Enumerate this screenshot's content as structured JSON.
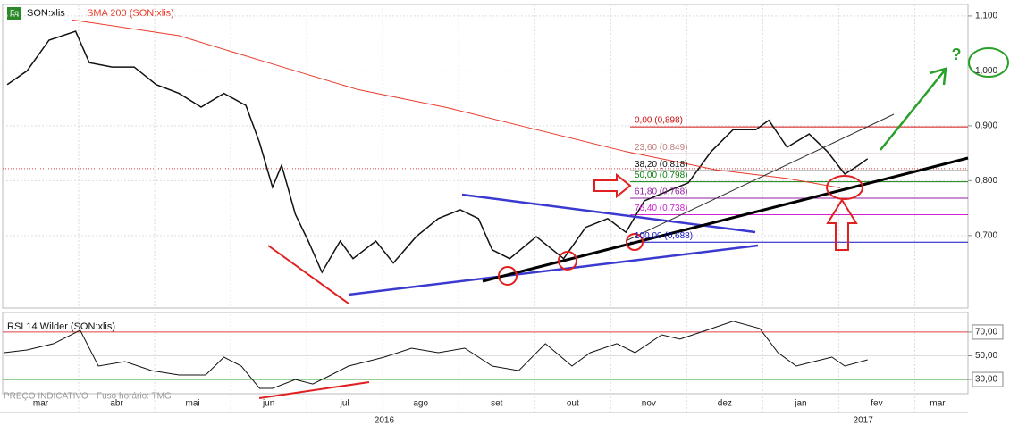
{
  "badge": "Eq",
  "chart_data": [
    {
      "type": "line",
      "xlim": [
        0,
        12.7
      ],
      "xgrid": [
        1,
        2,
        3,
        4,
        5,
        6,
        7,
        8,
        9,
        10,
        11,
        12
      ],
      "ylim": [
        0.568,
        1.121
      ],
      "yticks": [
        {
          "value": 0.7,
          "label": "0,700"
        },
        {
          "value": 0.8,
          "label": "0,800"
        },
        {
          "value": 0.9,
          "label": "0,900"
        },
        {
          "value": 1.0,
          "label": "1,000"
        },
        {
          "value": 1.1,
          "label": "1,100"
        }
      ],
      "grid": true,
      "last_price": 0.822,
      "series": [
        {
          "name": "SON:xlis",
          "color": "#111111",
          "x": [
            0.06,
            0.32,
            0.61,
            0.96,
            1.14,
            1.44,
            1.73,
            2.02,
            2.32,
            2.61,
            2.91,
            3.2,
            3.38,
            3.55,
            3.67,
            3.85,
            4.02,
            4.2,
            4.44,
            4.61,
            4.91,
            5.14,
            5.44,
            5.73,
            6.02,
            6.26,
            6.44,
            6.67,
            7.02,
            7.38,
            7.67,
            7.96,
            8.2,
            8.44,
            8.73,
            9.02,
            9.32,
            9.61,
            9.91,
            10.08,
            10.32,
            10.61,
            10.85,
            11.08,
            11.26,
            11.38
          ],
          "values": [
            0.975,
            1.0,
            1.056,
            1.072,
            1.015,
            1.007,
            1.007,
            0.975,
            0.959,
            0.934,
            0.959,
            0.937,
            0.869,
            0.788,
            0.828,
            0.739,
            0.69,
            0.633,
            0.69,
            0.658,
            0.69,
            0.65,
            0.698,
            0.731,
            0.747,
            0.731,
            0.674,
            0.658,
            0.698,
            0.658,
            0.715,
            0.731,
            0.706,
            0.763,
            0.78,
            0.796,
            0.853,
            0.893,
            0.893,
            0.91,
            0.861,
            0.885,
            0.853,
            0.812,
            0.828,
            0.84
          ]
        },
        {
          "name": "SMA 200 (SON:xlis)",
          "color": "#e83a2a",
          "x": [
            0.91,
            2.32,
            3.49,
            4.67,
            5.85,
            7.02,
            8.2,
            9.38,
            10.32,
            11.02
          ],
          "values": [
            1.093,
            1.064,
            1.015,
            0.966,
            0.933,
            0.893,
            0.853,
            0.82,
            0.804,
            0.787
          ]
        }
      ],
      "fib_levels": [
        {
          "label": "0,00 (0,898)",
          "value": 0.898,
          "color": "#d01010"
        },
        {
          "label": "23,60 (0,849)",
          "value": 0.849,
          "color": "#c08080"
        },
        {
          "label": "38,20 (0,818)",
          "value": 0.818,
          "color": "#111111"
        },
        {
          "label": "50,00 (0,798)",
          "value": 0.798,
          "color": "#108010"
        },
        {
          "label": "61,80 (0,768)",
          "value": 0.768,
          "color": "#9020a0"
        },
        {
          "label": "76,40 (0,738)",
          "value": 0.738,
          "color": "#d020d0"
        },
        {
          "label": "100,00 (0,688)",
          "value": 0.688,
          "color": "#1010c0"
        }
      ],
      "annotation": "?"
    },
    {
      "type": "line",
      "xlim": [
        0,
        12.7
      ],
      "ylim": [
        18,
        85
      ],
      "yticks": [
        {
          "value": 70,
          "label": "70,00"
        },
        {
          "value": 50,
          "label": "50,00"
        },
        {
          "value": 30,
          "label": "30,00"
        }
      ],
      "xticks": [
        {
          "value": 0.5,
          "label": "mar"
        },
        {
          "value": 1.5,
          "label": "abr"
        },
        {
          "value": 2.5,
          "label": "mai"
        },
        {
          "value": 3.5,
          "label": "jun"
        },
        {
          "value": 4.5,
          "label": "jul"
        },
        {
          "value": 5.5,
          "label": "ago"
        },
        {
          "value": 6.5,
          "label": "set"
        },
        {
          "value": 7.5,
          "label": "out"
        },
        {
          "value": 8.5,
          "label": "nov"
        },
        {
          "value": 9.5,
          "label": "dez"
        },
        {
          "value": 10.5,
          "label": "jan"
        },
        {
          "value": 11.5,
          "label": "fev"
        },
        {
          "value": 12.3,
          "label": "mar"
        }
      ],
      "years": [
        {
          "value": 5.02,
          "label": "2016"
        },
        {
          "value": 11.32,
          "label": "2017"
        }
      ],
      "series": [
        {
          "name": "RSI 14 Wilder (SON:xlis)",
          "color": "#111111",
          "x": [
            0.02,
            0.32,
            0.67,
            1.02,
            1.26,
            1.61,
            1.96,
            2.32,
            2.67,
            2.91,
            3.14,
            3.38,
            3.55,
            3.85,
            4.08,
            4.32,
            4.55,
            4.79,
            5.02,
            5.38,
            5.73,
            6.08,
            6.44,
            6.79,
            7.14,
            7.49,
            7.73,
            8.08,
            8.32,
            8.67,
            8.91,
            9.26,
            9.61,
            9.96,
            10.2,
            10.44,
            10.67,
            10.91,
            11.08,
            11.38
          ],
          "values": [
            52.6,
            54.9,
            60.2,
            71.5,
            41.3,
            45.1,
            37.5,
            33.8,
            33.8,
            48.9,
            41.3,
            22.5,
            22.5,
            30,
            26.2,
            33.8,
            41.3,
            45.1,
            48.9,
            56.4,
            52.6,
            56.4,
            41.3,
            37.5,
            60.2,
            41.3,
            52.6,
            60.2,
            52.6,
            67.7,
            64,
            71.5,
            79.1,
            73,
            52.6,
            41.3,
            45.1,
            48.9,
            41.3,
            46.6
          ]
        }
      ]
    }
  ],
  "footer": {
    "note": "PREÇO INDICATIVO",
    "timezone": "Fuso horário: TMG"
  }
}
